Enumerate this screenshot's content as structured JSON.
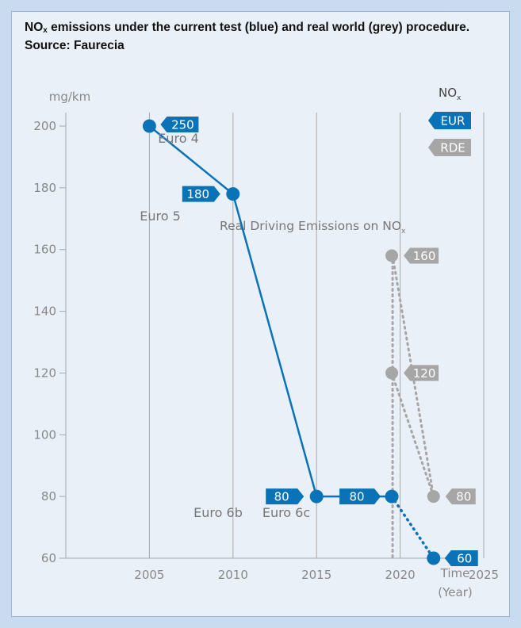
{
  "title_parts": {
    "pre": "NO",
    "sub": "x",
    "post": " emissions under the current test (blue) and real world (grey) procedure. Source: Faurecia"
  },
  "colors": {
    "blue": "#0a73b8",
    "grey": "#a6a6a6",
    "grid": "#a8a8a8"
  },
  "chart_data": {
    "type": "line",
    "title": "NOx emissions under the current test (blue) and real world (grey) procedure. Source: Faurecia",
    "ylabel": "mg/km",
    "xlabel_line1": "Time",
    "xlabel_line2": "(Year)",
    "ylim": [
      60,
      200
    ],
    "xlim": [
      2000,
      2025
    ],
    "y_ticks": [
      60,
      80,
      100,
      120,
      140,
      160,
      180,
      200
    ],
    "x_ticks": [
      2005,
      2010,
      2015,
      2020,
      2025
    ],
    "grid": true,
    "legend": {
      "title_pre": "NO",
      "title_sub": "x",
      "position": "top-right",
      "entries": [
        {
          "label": "EUR",
          "color": "#0a73b8"
        },
        {
          "label": "RDE",
          "color": "#a6a6a6"
        }
      ]
    },
    "series": [
      {
        "name": "EUR",
        "color": "#0a73b8",
        "points": [
          {
            "x": 2005,
            "y": 200,
            "tag": "250",
            "label": "Euro 4"
          },
          {
            "x": 2010,
            "y": 178,
            "tag": "180",
            "label": "Euro 5"
          },
          {
            "x": 2015,
            "y": 80,
            "tag": "80",
            "label": "Euro 6b"
          },
          {
            "x": 2019.5,
            "y": 80,
            "tag": "80",
            "label": "Euro 6c"
          },
          {
            "x": 2022,
            "y": 60,
            "tag": "60",
            "label": ""
          }
        ]
      },
      {
        "name": "RDE",
        "color": "#a6a6a6",
        "points": [
          {
            "x": 2019.5,
            "y": 158,
            "tag": "160"
          },
          {
            "x": 2019.5,
            "y": 120,
            "tag": "120"
          },
          {
            "x": 2022,
            "y": 80,
            "tag": "80"
          }
        ]
      }
    ],
    "annotation": {
      "pre": "Real Driving Emissions on NO",
      "sub": "x"
    }
  }
}
